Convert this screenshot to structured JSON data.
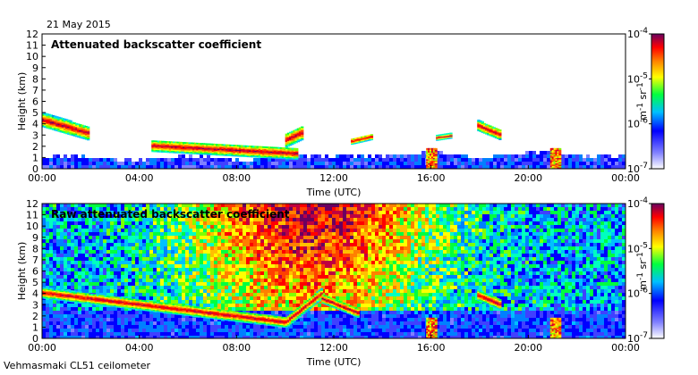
{
  "date_label": "21 May 2015",
  "footer_label": "Vehmasmaki CL51 ceilometer",
  "colorbar_unit_parts": [
    "m",
    "-1",
    " sr",
    "-1"
  ],
  "chart_data": [
    {
      "type": "heatmap",
      "title": "Attenuated backscatter coefficient",
      "xlabel": "Time (UTC)",
      "ylabel": "Height (km)",
      "xlim": [
        "00:00",
        "24:00"
      ],
      "ylim": [
        0,
        12
      ],
      "x_ticks": [
        "00:00",
        "04:00",
        "08:00",
        "12:00",
        "16:00",
        "20:00",
        "00:00"
      ],
      "y_ticks": [
        "0",
        "1",
        "2",
        "3",
        "4",
        "5",
        "6",
        "7",
        "8",
        "9",
        "10",
        "11",
        "12"
      ],
      "colorbar": {
        "scale": "log",
        "range": [
          "10^-7",
          "10^-4"
        ],
        "ticks": [
          {
            "base": "10",
            "exp": "-4"
          },
          {
            "base": "10",
            "exp": "-5"
          },
          {
            "base": "10",
            "exp": "-6"
          },
          {
            "base": "10",
            "exp": "-7"
          }
        ]
      },
      "layers": [
        {
          "t0": 0.0,
          "t1": 1.9,
          "h_start": 4.3,
          "h_end": 3.1,
          "thickness": 1.2
        },
        {
          "t0": 4.5,
          "t1": 10.5,
          "h_start": 2.0,
          "h_end": 1.3,
          "thickness": 1.0
        },
        {
          "t0": 10.0,
          "t1": 10.7,
          "h_start": 2.5,
          "h_end": 3.2,
          "thickness": 1.2
        },
        {
          "t0": 12.7,
          "t1": 13.5,
          "h_start": 2.4,
          "h_end": 2.8,
          "thickness": 0.5
        },
        {
          "t0": 16.2,
          "t1": 16.8,
          "h_start": 2.7,
          "h_end": 2.9,
          "thickness": 0.4
        },
        {
          "t0": 17.9,
          "t1": 18.8,
          "h_start": 3.8,
          "h_end": 3.0,
          "thickness": 0.9
        }
      ],
      "precipitation_columns": [
        15.8,
        20.9
      ]
    },
    {
      "type": "heatmap",
      "title": "Raw attenuated backscatter coefficient",
      "xlabel": "Time (UTC)",
      "ylabel": "Height (km)",
      "xlim": [
        "00:00",
        "24:00"
      ],
      "ylim": [
        0,
        12
      ],
      "x_ticks": [
        "00:00",
        "04:00",
        "08:00",
        "12:00",
        "16:00",
        "20:00",
        "00:00"
      ],
      "y_ticks": [
        "0",
        "1",
        "2",
        "3",
        "4",
        "5",
        "6",
        "7",
        "8",
        "9",
        "10",
        "11",
        "12"
      ],
      "colorbar": {
        "scale": "log",
        "range": [
          "10^-7",
          "10^-4"
        ],
        "ticks": [
          {
            "base": "10",
            "exp": "-4"
          },
          {
            "base": "10",
            "exp": "-5"
          },
          {
            "base": "10",
            "exp": "-6"
          },
          {
            "base": "10",
            "exp": "-7"
          }
        ]
      },
      "layers": [
        {
          "t0": 0.0,
          "t1": 10.0,
          "h_start": 4.0,
          "h_end": 1.4,
          "thickness": 0.9
        },
        {
          "t0": 10.0,
          "t1": 11.5,
          "h_start": 1.4,
          "h_end": 4.0,
          "thickness": 0.9
        },
        {
          "t0": 11.5,
          "t1": 13.0,
          "h_start": 3.5,
          "h_end": 2.2,
          "thickness": 0.8
        },
        {
          "t0": 17.9,
          "t1": 18.8,
          "h_start": 3.8,
          "h_end": 3.0,
          "thickness": 0.9
        }
      ],
      "precipitation_columns": [
        15.8,
        20.9
      ]
    }
  ]
}
